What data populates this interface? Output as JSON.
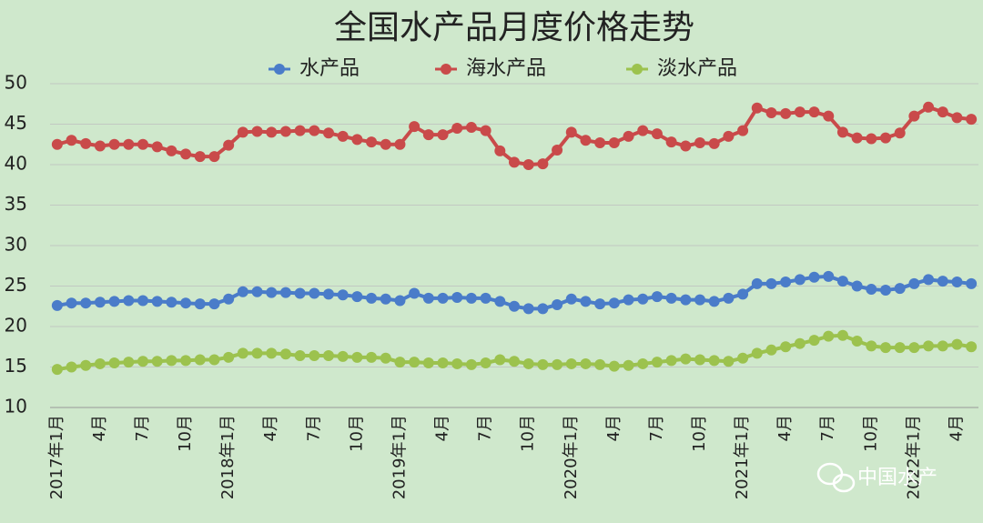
{
  "chart_data": {
    "type": "line",
    "title": "全国水产品月度价格走势",
    "categories": [
      "2017年1月",
      null,
      null,
      "4月",
      null,
      null,
      "7月",
      null,
      null,
      "10月",
      null,
      null,
      "2018年1月",
      null,
      null,
      "4月",
      null,
      null,
      "7月",
      null,
      null,
      "10月",
      null,
      null,
      "2019年1月",
      null,
      null,
      "4月",
      null,
      null,
      "7月",
      null,
      null,
      "10月",
      null,
      null,
      "2020年1月",
      null,
      null,
      "4月",
      null,
      null,
      "7月",
      null,
      null,
      "10月",
      null,
      null,
      "2021年1月",
      null,
      null,
      "4月",
      null,
      null,
      "7月",
      null,
      null,
      "10月",
      null,
      null,
      "2022年1月",
      null,
      null,
      "4月",
      null
    ],
    "series": [
      {
        "name": "水产品",
        "color": "#4a7cc9",
        "values": [
          22.6,
          22.9,
          22.9,
          23,
          23.1,
          23.2,
          23.2,
          23.1,
          23,
          22.9,
          22.8,
          22.8,
          23.4,
          24.3,
          24.3,
          24.2,
          24.2,
          24.1,
          24.1,
          24,
          23.9,
          23.7,
          23.5,
          23.4,
          23.2,
          24.1,
          23.5,
          23.5,
          23.6,
          23.5,
          23.5,
          23.1,
          22.5,
          22.2,
          22.2,
          22.7,
          23.4,
          23.1,
          22.8,
          22.9,
          23.3,
          23.4,
          23.7,
          23.5,
          23.3,
          23.3,
          23.1,
          23.5,
          24,
          25.3,
          25.3,
          25.5,
          25.8,
          26.1,
          26.2,
          25.6,
          25,
          24.6,
          24.5,
          24.7,
          25.3,
          25.8,
          25.6,
          25.5,
          25.3
        ]
      },
      {
        "name": "海水产品",
        "color": "#c94a4a",
        "values": [
          42.5,
          43,
          42.6,
          42.3,
          42.5,
          42.5,
          42.5,
          42.2,
          41.7,
          41.3,
          41,
          41,
          42.4,
          44,
          44.1,
          44,
          44.1,
          44.2,
          44.2,
          43.9,
          43.5,
          43.1,
          42.8,
          42.5,
          42.5,
          44.7,
          43.7,
          43.7,
          44.5,
          44.6,
          44.2,
          41.7,
          40.3,
          40,
          40.1,
          41.8,
          44,
          43,
          42.7,
          42.7,
          43.5,
          44.2,
          43.8,
          42.8,
          42.3,
          42.7,
          42.6,
          43.5,
          44.2,
          47,
          46.4,
          46.3,
          46.5,
          46.5,
          46,
          44,
          43.3,
          43.2,
          43.3,
          43.9,
          46,
          47.1,
          46.5,
          45.8,
          45.6
        ]
      },
      {
        "name": "淡水产品",
        "color": "#9cc24e",
        "values": [
          14.7,
          15,
          15.2,
          15.4,
          15.5,
          15.6,
          15.7,
          15.7,
          15.8,
          15.8,
          15.9,
          15.9,
          16.2,
          16.7,
          16.7,
          16.7,
          16.6,
          16.4,
          16.4,
          16.4,
          16.3,
          16.2,
          16.2,
          16.1,
          15.6,
          15.6,
          15.5,
          15.5,
          15.4,
          15.3,
          15.5,
          15.9,
          15.7,
          15.4,
          15.3,
          15.3,
          15.4,
          15.4,
          15.3,
          15.1,
          15.2,
          15.4,
          15.6,
          15.8,
          16,
          15.9,
          15.8,
          15.7,
          16.1,
          16.7,
          17.1,
          17.5,
          17.9,
          18.3,
          18.8,
          18.9,
          18.2,
          17.6,
          17.4,
          17.4,
          17.4,
          17.6,
          17.6,
          17.8,
          17.5
        ]
      }
    ],
    "ylim": [
      10,
      50
    ],
    "yticks": [
      10,
      15,
      20,
      25,
      30,
      35,
      40,
      45,
      50
    ],
    "grid": true,
    "watermark": "中国水产"
  }
}
